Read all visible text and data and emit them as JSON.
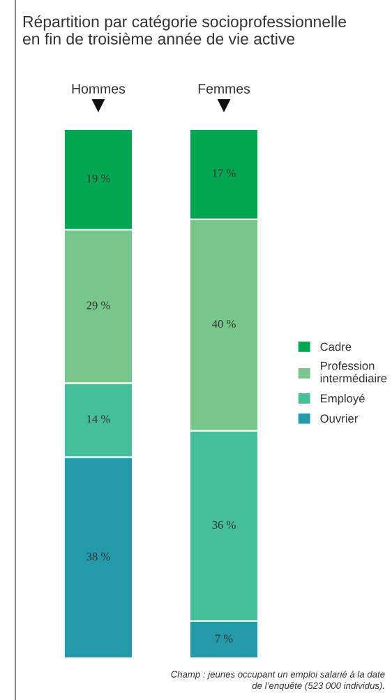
{
  "chart_data": {
    "type": "bar",
    "title": "Répartition par catégorie socioprofessionnelle\nen fin de troisième année de vie active",
    "categories": [
      "Hommes",
      "Femmes"
    ],
    "stacked": true,
    "legend": "right",
    "series": [
      {
        "name": "Ouvrier",
        "color": "#2399aa",
        "values": [
          38,
          7
        ],
        "value_labels": [
          "38 %",
          "7 %"
        ]
      },
      {
        "name": "Employé",
        "color": "#45bf9a",
        "values": [
          14,
          36
        ],
        "value_labels": [
          "14 %",
          "36 %"
        ]
      },
      {
        "name": "Profession intermédiaire",
        "color": "#77c68a",
        "values": [
          29,
          40
        ],
        "value_labels": [
          "29 %",
          "40 %"
        ]
      },
      {
        "name": "Cadre",
        "color": "#00a650",
        "values": [
          19,
          17
        ],
        "value_labels": [
          "19 %",
          "17 %"
        ]
      }
    ],
    "annotations": [
      "Champ : jeunes occupant un emploi salarié à la date\nde l’enquête (523 000 individus)."
    ]
  }
}
